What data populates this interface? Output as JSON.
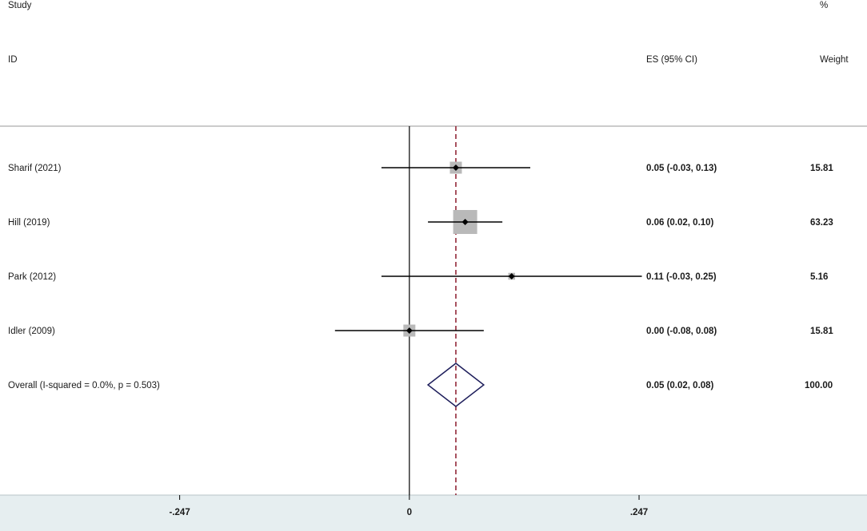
{
  "header": {
    "study": "Study",
    "id": "ID",
    "es": "ES (95% CI)",
    "pct": "%",
    "weight": "Weight"
  },
  "chart_data": {
    "type": "forest",
    "x_axis": {
      "ticks": [
        -0.247,
        0,
        0.247
      ],
      "tick_labels": [
        "-.247",
        "0",
        ".247"
      ],
      "range": [
        -0.4402,
        0.4921
      ]
    },
    "null_line": 0,
    "pooled_line": 0.05,
    "studies": [
      {
        "label": "Sharif (2021)",
        "es": 0.05,
        "lo": -0.03,
        "hi": 0.13,
        "es_text": "0.05 (-0.03, 0.13)",
        "weight": 15.81,
        "weight_text": "15.81"
      },
      {
        "label": "Hill (2019)",
        "es": 0.06,
        "lo": 0.02,
        "hi": 0.1,
        "es_text": "0.06 (0.02, 0.10)",
        "weight": 63.23,
        "weight_text": "63.23"
      },
      {
        "label": "Park (2012)",
        "es": 0.11,
        "lo": -0.03,
        "hi": 0.25,
        "es_text": "0.11 (-0.03, 0.25)",
        "weight": 5.16,
        "weight_text": "5.16"
      },
      {
        "label": "Idler (2009)",
        "es": 0.0,
        "lo": -0.08,
        "hi": 0.08,
        "es_text": "0.00 (-0.08, 0.08)",
        "weight": 15.81,
        "weight_text": "15.81"
      }
    ],
    "overall": {
      "label": "Overall  (I-squared = 0.0%, p = 0.503)",
      "es": 0.05,
      "lo": 0.02,
      "hi": 0.08,
      "es_text": "0.05 (0.02, 0.08)",
      "weight": 100.0,
      "weight_text": "100.00"
    },
    "colors": {
      "axis_band": "#e6eef0",
      "pooled_line": "#8b1a2b",
      "diamond": "#1f1f5c",
      "weight_box": "#b9b9b9",
      "ci_line": "#000000"
    }
  }
}
